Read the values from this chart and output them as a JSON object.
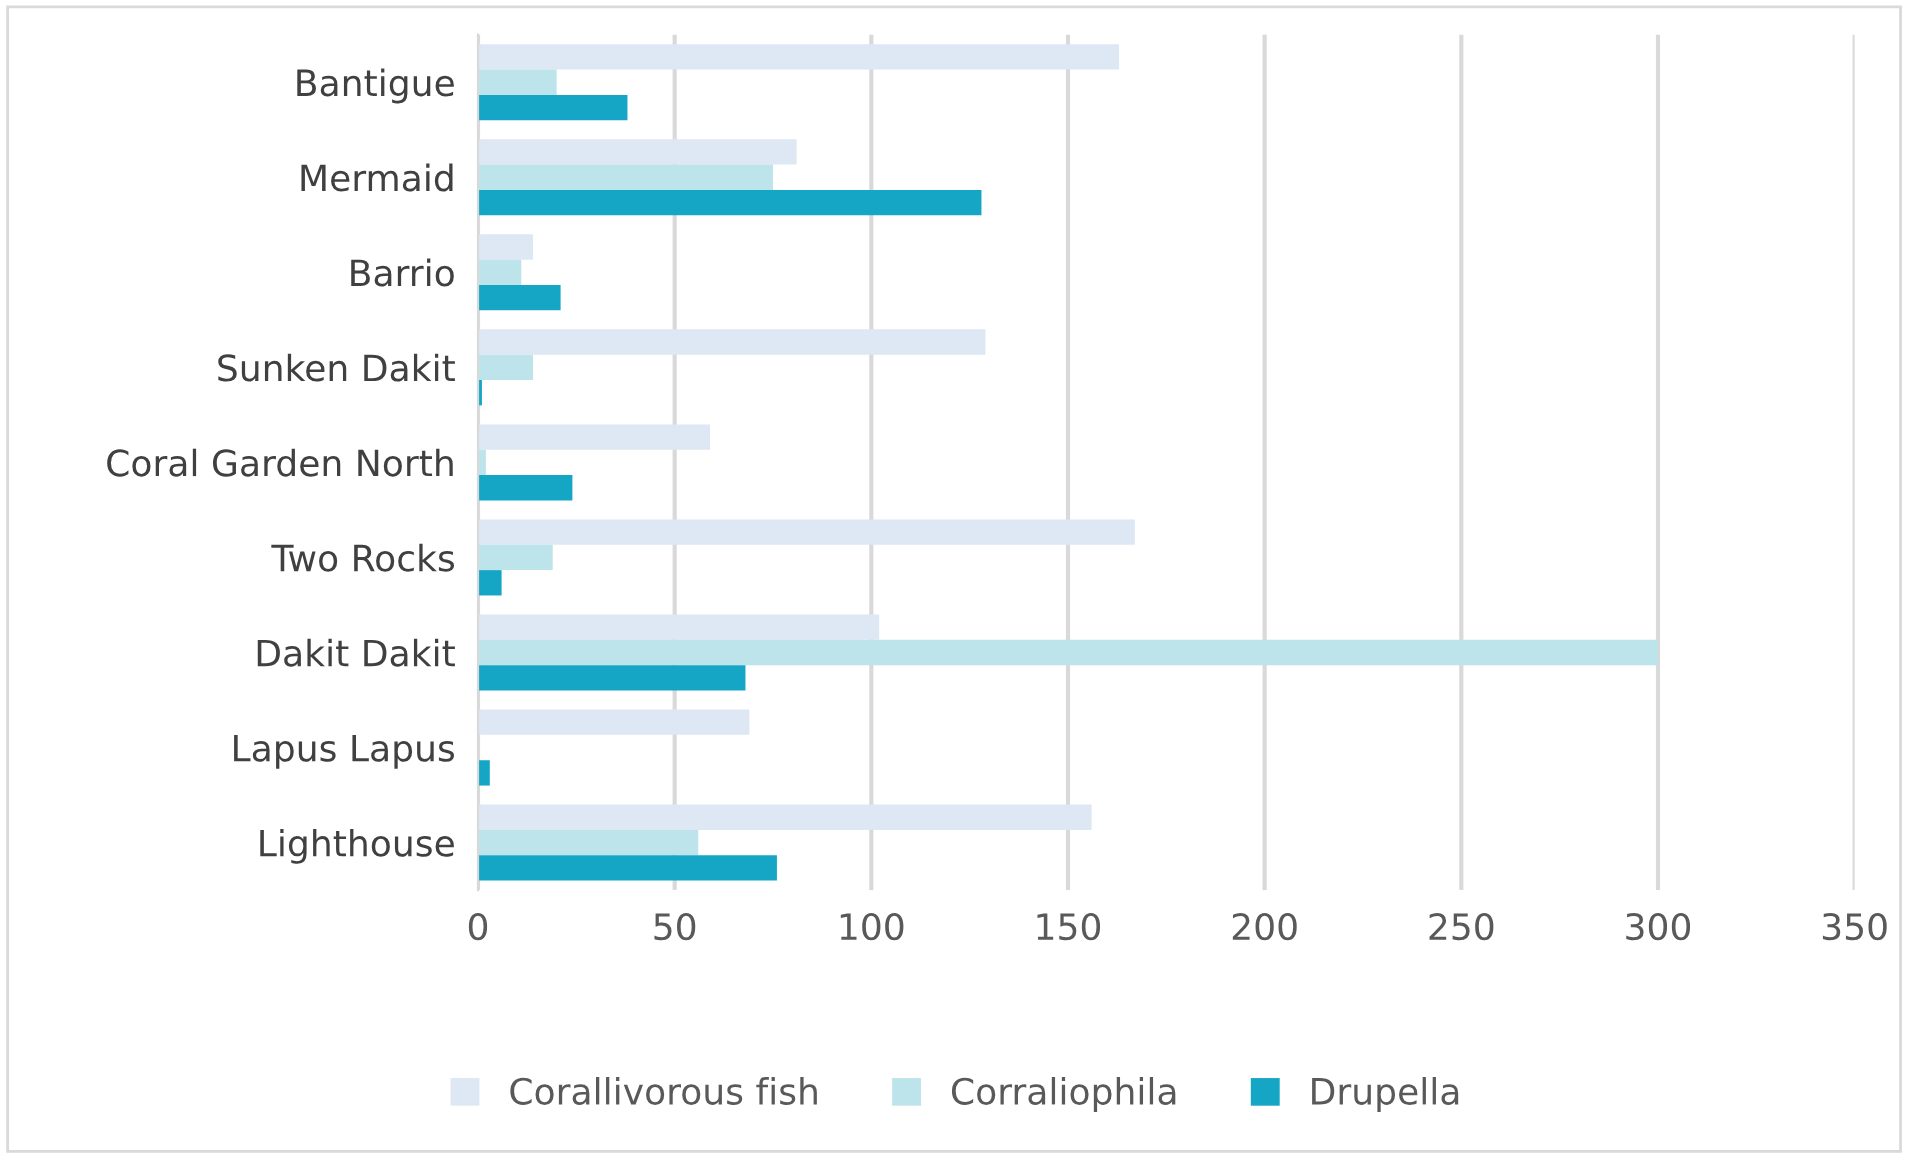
{
  "chart_data": {
    "type": "bar",
    "orientation": "horizontal",
    "categories": [
      "Bantigue",
      "Mermaid",
      "Barrio",
      "Sunken Dakit",
      "Coral Garden North",
      "Two Rocks",
      "Dakit Dakit",
      "Lapus Lapus",
      "Lighthouse"
    ],
    "series": [
      {
        "name": "Corallivorous fish",
        "color": "#dde8f4",
        "values": [
          163,
          81,
          14,
          129,
          59,
          167,
          102,
          69,
          156
        ]
      },
      {
        "name": "Corraliophila",
        "color": "#bde4ea",
        "values": [
          20,
          75,
          11,
          14,
          2,
          19,
          300,
          0,
          56
        ]
      },
      {
        "name": "Drupella",
        "color": "#14a6c4",
        "values": [
          38,
          128,
          21,
          1,
          24,
          6,
          68,
          3,
          76
        ]
      }
    ],
    "xlim": [
      0,
      350
    ],
    "xticks": [
      0,
      50,
      100,
      150,
      200,
      250,
      300,
      350
    ],
    "grid": "x",
    "legend": "bottom"
  }
}
